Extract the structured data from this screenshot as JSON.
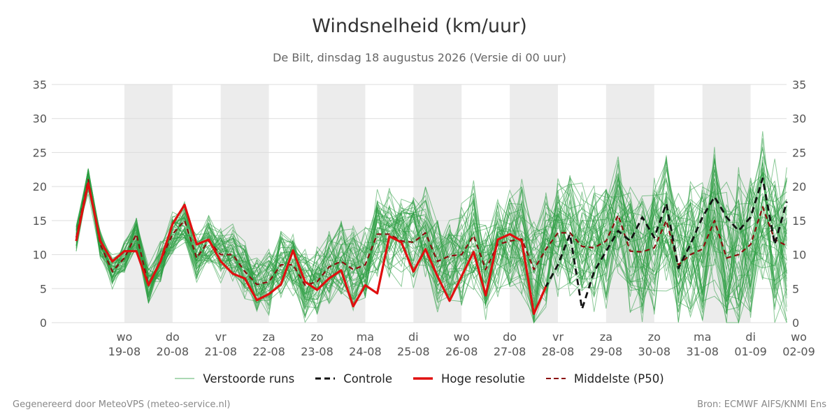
{
  "title": "Windsnelheid (km/uur)",
  "subtitle": "De Bilt, dinsdag 18 augustus 2026 (Versie di 00 uur)",
  "legend": {
    "ensemble": "Verstoorde runs",
    "control": "Controle",
    "hires": "Hoge resolutie",
    "median": "Middelste (P50)"
  },
  "footer": {
    "left": "Gegenereerd door MeteoVPS (meteo-service.nl)",
    "right": "Bron: ECMWF AIFS/KNMI Ens"
  },
  "colors": {
    "ensemble": "#2e9e44",
    "control": "#111111",
    "hires": "#e01010",
    "median": "#8b0d0d",
    "weekend_band": "#ececec",
    "grid": "#dddddd"
  },
  "chart_data": {
    "type": "line",
    "title": "Windsnelheid (km/uur)",
    "ylabel": "",
    "xlabel": "",
    "ylim": [
      0,
      35
    ],
    "yticks": [
      0,
      5,
      10,
      15,
      20,
      25,
      30,
      35
    ],
    "y_axis_both_sides": true,
    "grid": true,
    "legend_position": "bottom",
    "x_unit": "days since forecast start (18-08 00 uur), 6-hourly steps",
    "xlim": [
      0,
      15
    ],
    "x_tick_labels": [
      {
        "day": "wo",
        "date": "19-08"
      },
      {
        "day": "do",
        "date": "20-08"
      },
      {
        "day": "vr",
        "date": "21-08"
      },
      {
        "day": "za",
        "date": "22-08"
      },
      {
        "day": "zo",
        "date": "23-08"
      },
      {
        "day": "ma",
        "date": "24-08"
      },
      {
        "day": "di",
        "date": "25-08"
      },
      {
        "day": "wo",
        "date": "26-08"
      },
      {
        "day": "do",
        "date": "27-08"
      },
      {
        "day": "vr",
        "date": "28-08"
      },
      {
        "day": "za",
        "date": "29-08"
      },
      {
        "day": "zo",
        "date": "30-08"
      },
      {
        "day": "ma",
        "date": "31-08"
      },
      {
        "day": "di",
        "date": "01-09"
      },
      {
        "day": "wo",
        "date": "02-09"
      }
    ],
    "shaded_days": [
      "19-08",
      "21-08",
      "23-08",
      "25-08",
      "27-08",
      "29-08",
      "31-08"
    ],
    "series": [
      {
        "name": "Hoge resolutie",
        "step_days": 0.25,
        "values": [
          12,
          20.5,
          12,
          9,
          10.5,
          10.5,
          5.5,
          9,
          14.5,
          17.3,
          11.5,
          12.2,
          9,
          7.2,
          6.5,
          3.3,
          4.2,
          5.6,
          10.6,
          6,
          4.8,
          6.5,
          7.7,
          2.4,
          5.5,
          4.3,
          12.7,
          11.8,
          7.5,
          10.8,
          6.8,
          3.2,
          6.8,
          10.4,
          4,
          12.2,
          13,
          12,
          1.3,
          5.3
        ]
      },
      {
        "name": "Controle",
        "step_days": 0.25,
        "values": [
          12,
          20.5,
          12,
          9,
          10.5,
          10.5,
          5.5,
          9,
          14.5,
          17.3,
          11.5,
          12.2,
          9,
          7.2,
          6.5,
          3.3,
          4.2,
          5.6,
          10.6,
          6,
          4.8,
          6.5,
          7.7,
          2.4,
          5.5,
          4.3,
          12.7,
          11.8,
          7.5,
          10.8,
          6.8,
          3.2,
          6.8,
          10.4,
          4,
          12.2,
          13,
          12,
          1.3,
          5.3,
          8.5,
          13,
          2,
          7.5,
          10.5,
          13.5,
          12,
          15.5,
          12.5,
          17.5,
          8,
          11.5,
          15.5,
          18.5,
          15.5,
          13.5,
          15.5,
          21.2,
          11.5,
          17.8
        ]
      },
      {
        "name": "Middelste (P50)",
        "step_days": 0.25,
        "values": [
          12.5,
          21,
          11.5,
          7.5,
          9.5,
          13,
          5.5,
          9,
          13,
          15,
          9.5,
          12,
          10,
          10,
          7.5,
          5.6,
          6,
          8.5,
          8.5,
          5.5,
          6,
          8.2,
          9,
          7.8,
          8.5,
          13,
          13,
          12,
          11.8,
          13.2,
          9,
          9.8,
          10,
          12.8,
          7.8,
          11.5,
          12,
          12.3,
          7.8,
          10.8,
          13.2,
          13.2,
          11.2,
          11,
          12,
          15.8,
          10.5,
          10.4,
          11,
          15,
          8.5,
          10,
          10.8,
          15,
          9.5,
          10,
          11.5,
          17,
          12.2,
          11.3
        ]
      }
    ]
  }
}
